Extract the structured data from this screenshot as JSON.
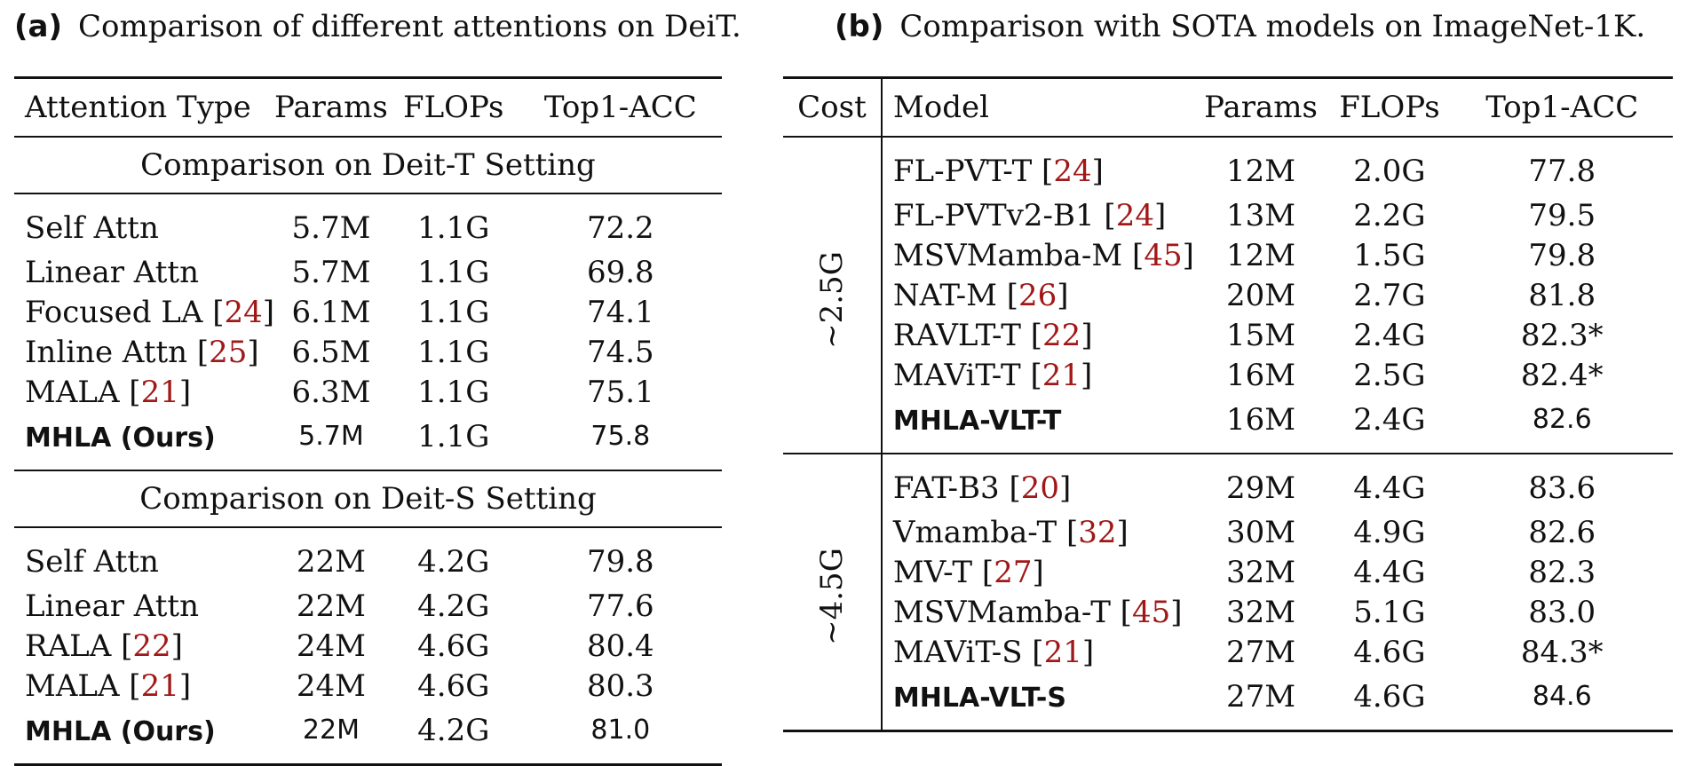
{
  "caption_a": {
    "label": "(a)",
    "text": "Comparison of different attentions on DeiT."
  },
  "caption_b": {
    "label": "(b)",
    "text": "Comparison with SOTA models on ImageNet-1K."
  },
  "table_a": {
    "headers": [
      "Attention Type",
      "Params",
      "FLOPs",
      "Top1-ACC"
    ],
    "sections": [
      {
        "title": "Comparison on Deit-T Setting",
        "rows": [
          {
            "name": "Self Attn",
            "ref": "",
            "params": "5.7M",
            "flops": "1.1G",
            "acc": "72.2"
          },
          {
            "name": "Linear Attn",
            "ref": "",
            "params": "5.7M",
            "flops": "1.1G",
            "acc": "69.8"
          },
          {
            "name": "Focused LA [",
            "ref": "24",
            "close": "]",
            "params": "6.1M",
            "flops": "1.1G",
            "acc": "74.1"
          },
          {
            "name": "Inline Attn [",
            "ref": "25",
            "close": "]",
            "params": "6.5M",
            "flops": "1.1G",
            "acc": "74.5"
          },
          {
            "name": "MALA [",
            "ref": "21",
            "close": "]",
            "params": "6.3M",
            "flops": "1.1G",
            "acc": "75.1"
          },
          {
            "name": "MHLA (Ours)",
            "params": "5.7M",
            "flops": "1.1G",
            "acc": "75.8"
          }
        ]
      },
      {
        "title": "Comparison on Deit-S Setting",
        "rows": [
          {
            "name": "Self Attn",
            "params": "22M",
            "flops": "4.2G",
            "acc": "79.8"
          },
          {
            "name": "Linear Attn",
            "params": "22M",
            "flops": "4.2G",
            "acc": "77.6"
          },
          {
            "name": "RALA [",
            "ref": "22",
            "close": "]",
            "params": "24M",
            "flops": "4.6G",
            "acc": "80.4"
          },
          {
            "name": "MALA [",
            "ref": "21",
            "close": "]",
            "params": "24M",
            "flops": "4.6G",
            "acc": "80.3"
          },
          {
            "name": "MHLA (Ours)",
            "params": "22M",
            "flops": "4.2G",
            "acc": "81.0"
          }
        ]
      }
    ]
  },
  "table_b": {
    "headers": [
      "Cost",
      "Model",
      "Params",
      "FLOPs",
      "Top1-ACC"
    ],
    "groups": [
      {
        "cost": "~2.5G",
        "rows": [
          {
            "name": "FL-PVT-T [",
            "ref": "24",
            "close": "]",
            "params": "12M",
            "flops": "2.0G",
            "acc": "77.8"
          },
          {
            "name": "FL-PVTv2-B1 [",
            "ref": "24",
            "close": "]",
            "params": "13M",
            "flops": "2.2G",
            "acc": "79.5"
          },
          {
            "name": "MSVMamba-M [",
            "ref": "45",
            "close": "]",
            "params": "12M",
            "flops": "1.5G",
            "acc": "79.8"
          },
          {
            "name": "NAT-M [",
            "ref": "26",
            "close": "]",
            "params": "20M",
            "flops": "2.7G",
            "acc": "81.8"
          },
          {
            "name": "RAVLT-T [",
            "ref": "22",
            "close": "]",
            "params": "15M",
            "flops": "2.4G",
            "acc": "82.3*"
          },
          {
            "name": "MAViT-T [",
            "ref": "21",
            "close": "]",
            "params": "16M",
            "flops": "2.5G",
            "acc": "82.4*"
          },
          {
            "name": "MHLA-VLT-T",
            "params": "16M",
            "flops": "2.4G",
            "acc": "82.6"
          }
        ]
      },
      {
        "cost": "~4.5G",
        "rows": [
          {
            "name": "FAT-B3 [",
            "ref": "20",
            "close": "]",
            "params": "29M",
            "flops": "4.4G",
            "acc": "83.6"
          },
          {
            "name": "Vmamba-T [",
            "ref": "32",
            "close": "]",
            "params": "30M",
            "flops": "4.9G",
            "acc": "82.6"
          },
          {
            "name": "MV-T [",
            "ref": "27",
            "close": "]",
            "params": "32M",
            "flops": "4.4G",
            "acc": "82.3"
          },
          {
            "name": "MSVMamba-T [",
            "ref": "45",
            "close": "]",
            "params": "32M",
            "flops": "5.1G",
            "acc": "83.0"
          },
          {
            "name": "MAViT-S [",
            "ref": "21",
            "close": "]",
            "params": "27M",
            "flops": "4.6G",
            "acc": "84.3*"
          },
          {
            "name": "MHLA-VLT-S",
            "params": "27M",
            "flops": "4.6G",
            "acc": "84.6"
          }
        ]
      }
    ]
  }
}
